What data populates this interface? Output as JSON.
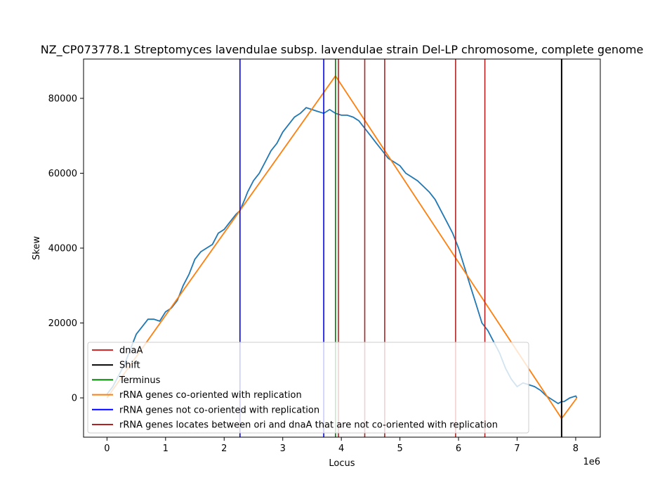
{
  "chart_data": {
    "type": "line",
    "title": "NZ_CP073778.1 Streptomyces lavendulae subsp. lavendulae strain Del-LP chromosome, complete genome",
    "xlabel": "Locus",
    "ylabel": "Skew",
    "x_offset_label": "1e6",
    "xlim": [
      -0.4,
      8.42
    ],
    "ylim": [
      -10500,
      90500
    ],
    "x_ticks": [
      0,
      1,
      2,
      3,
      4,
      5,
      6,
      7,
      8
    ],
    "y_ticks": [
      0,
      20000,
      40000,
      60000,
      80000
    ],
    "x_tick_labels": [
      "0",
      "1",
      "2",
      "3",
      "4",
      "5",
      "6",
      "7",
      "8"
    ],
    "y_tick_labels": [
      "0",
      "20000",
      "40000",
      "60000",
      "80000"
    ],
    "grid": false,
    "legend_position": "lower-left",
    "colors": {
      "skew": "#1f77b4",
      "dnaA": "#d62728",
      "shift": "#000000",
      "terminus": "#008000",
      "co_oriented": "#ff7f0e",
      "not_co_oriented": "#0000ff",
      "between_ori_dnaA": "#b22222"
    },
    "legend": [
      {
        "label": "dnaA",
        "color": "#d62728"
      },
      {
        "label": "Shift",
        "color": "#000000"
      },
      {
        "label": "Terminus",
        "color": "#008000"
      },
      {
        "label": "rRNA genes co-oriented with replication",
        "color": "#ff7f0e"
      },
      {
        "label": "rRNA genes not co-oriented with replication",
        "color": "#0000ff"
      },
      {
        "label": "rRNA genes locates between ori and dnaA that are not co-oriented with replication",
        "color": "#b22222"
      }
    ],
    "series": [
      {
        "name": "skew",
        "x": [
          0,
          0.1,
          0.2,
          0.3,
          0.4,
          0.5,
          0.6,
          0.7,
          0.8,
          0.9,
          1.0,
          1.1,
          1.2,
          1.3,
          1.4,
          1.5,
          1.6,
          1.7,
          1.8,
          1.9,
          2.0,
          2.1,
          2.2,
          2.27,
          2.35,
          2.4,
          2.5,
          2.6,
          2.7,
          2.8,
          2.9,
          3.0,
          3.1,
          3.2,
          3.3,
          3.4,
          3.5,
          3.6,
          3.7,
          3.8,
          3.9,
          4.0,
          4.1,
          4.2,
          4.3,
          4.4,
          4.5,
          4.6,
          4.7,
          4.8,
          4.9,
          5.0,
          5.1,
          5.2,
          5.3,
          5.4,
          5.5,
          5.6,
          5.7,
          5.8,
          5.9,
          6.0,
          6.1,
          6.2,
          6.3,
          6.4,
          6.5,
          6.6,
          6.7,
          6.8,
          6.9,
          7.0,
          7.1,
          7.2,
          7.3,
          7.4,
          7.5,
          7.6,
          7.7,
          7.76,
          7.8,
          7.9,
          8.0,
          8.02
        ],
        "y": [
          1000,
          3000,
          6000,
          9000,
          13000,
          17000,
          19000,
          21000,
          21000,
          20500,
          23000,
          24000,
          26000,
          30000,
          33000,
          37000,
          39000,
          40000,
          41000,
          44000,
          45000,
          47000,
          49000,
          50000,
          53000,
          55000,
          58000,
          60000,
          63000,
          66000,
          68000,
          71000,
          73000,
          75000,
          76000,
          77500,
          77000,
          76500,
          76000,
          77000,
          76000,
          75500,
          75500,
          75000,
          74000,
          72000,
          70000,
          68000,
          66000,
          64000,
          63000,
          62000,
          60000,
          59000,
          58000,
          56500,
          55000,
          53000,
          50000,
          47000,
          44000,
          40000,
          35000,
          30000,
          25000,
          20000,
          18000,
          15000,
          12000,
          8000,
          5000,
          3000,
          4000,
          3500,
          3000,
          2000,
          500,
          -500,
          -1500,
          -1000,
          -1000,
          0,
          500,
          0
        ]
      },
      {
        "name": "rRNA genes co-oriented with replication",
        "x": [
          0,
          3.9,
          7.76,
          8.02
        ],
        "y": [
          0,
          86000,
          -5500,
          0
        ]
      }
    ],
    "vertical_lines": [
      {
        "category": "not_co_oriented",
        "x": 2.27
      },
      {
        "category": "not_co_oriented",
        "x": 3.7
      },
      {
        "category": "terminus",
        "x": 3.9
      },
      {
        "category": "between_ori_dnaA",
        "x": 3.95
      },
      {
        "category": "between_ori_dnaA",
        "x": 4.4
      },
      {
        "category": "between_ori_dnaA",
        "x": 4.74
      },
      {
        "category": "between_ori_dnaA",
        "x": 5.95
      },
      {
        "category": "between_ori_dnaA",
        "x": 6.45
      },
      {
        "category": "shift",
        "x": 7.76
      }
    ]
  }
}
